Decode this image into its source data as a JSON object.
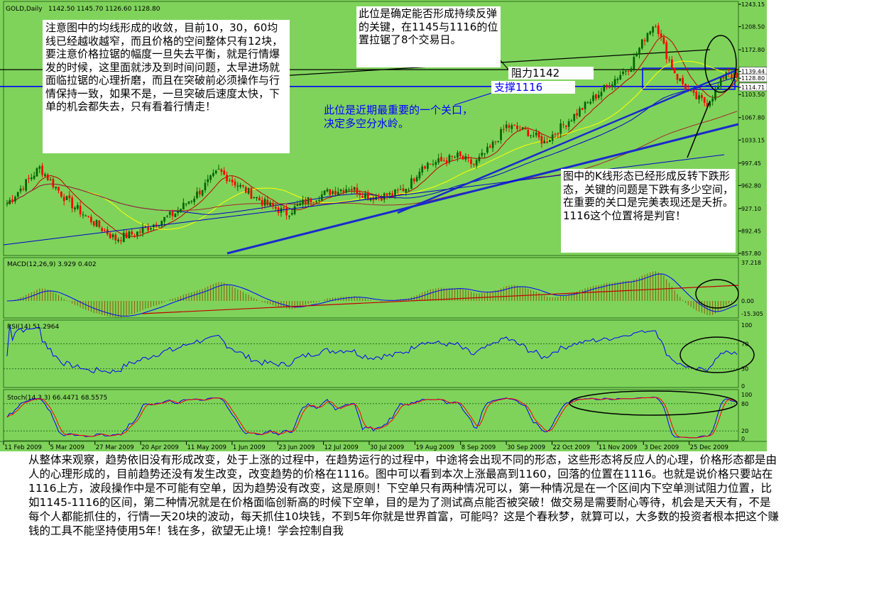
{
  "header": {
    "symbol": "GOLD,Daily",
    "ohlc": "1142.50 1145.70 1126.60 1128.80"
  },
  "price_axis": [
    "1243.15",
    "1208.50",
    "1172.80",
    "1139.44",
    "1128.80",
    "1114.71",
    "1103.50",
    "1067.80",
    "1033.15",
    "997.45",
    "962.80",
    "927.10",
    "892.45",
    "857.80"
  ],
  "date_axis": [
    "11 Feb 2009",
    "5 Mar 2009",
    "27 Mar 2009",
    "20 Apr 2009",
    "11 May 2009",
    "1 Jun 2009",
    "23 Jun 2009",
    "12 Jul 2009",
    "30 Jul 2009",
    "19 Aug 2009",
    "8 Sep 2009",
    "30 Sep 2009",
    "22 Oct 2009",
    "11 Nov 2009",
    "3 Dec 2009",
    "25 Dec 2009"
  ],
  "macd": {
    "label": "MACD(12,26,9) 3.929 0.402",
    "axis": [
      "37.218",
      "0.00",
      "-15.305"
    ]
  },
  "rsi": {
    "label": "RSI(14) 51.2964",
    "axis": [
      "100",
      "70",
      "30",
      "0"
    ]
  },
  "stoch": {
    "label": "Stoch(14,3,3) 66.4471 68.5575",
    "axis": [
      "100",
      "80",
      "20",
      "0"
    ]
  },
  "annotations": {
    "left_note": "注意图中的均线形成的收敛，目前10，30，60均线已经越收越窄，而且价格的空间整体只有12块，要注意价格拉锯的幅度一旦失去平衡，就是行情爆发的时候，这里面就涉及到时间问题，太早进场就面临拉锯的心理折磨，而且在突破前必须操作与行情保持一致，如果不是，一旦突破后速度太快，下单的机会都失去，只有看着行情走！",
    "top_note": "此位是确定能否形成持续反弹的关键，在1145与1116的位置拉锯了8个交易日。",
    "blue_note": "此位是近期最重要的一个关口，决定多空分水岭。",
    "right_note": "图中的K线形态已经形成反转下跌形态，关键的问题是下跌有多少空间，在重要的关口是完美表现还是夭折。1116这个位置将是判官！",
    "resistance": "阻力1142",
    "support": "支撑1116"
  },
  "bottom_text": "从整体来观察，趋势依旧没有形成改变，处于上涨的过程中，在趋势运行的过程中，中途将会出现不同的形态，这些形态将反应人的心理，价格形态都是由人的心理形成的，目前趋势还没有发生改变，改变趋势的价格在1116。图中可以看到本次上涨最高到1160，回落的位置在1116。也就是说价格只要站在1116上方，波段操作中是不可能有空单，因为趋势没有改变，这是原则！下空单只有两种情况可以，第一种情况是在一个区间内下空单测试阻力位置，比如1145-1116的区间，第二种情况就是在价格面临创新高的时候下空单，目的是为了测试高点能否被突破！做交易是需要耐心等待，机会是天天有，不是每个人都能抓住的，行情一天20块的波动，每天抓住10块钱，不到5年你就是世界首富，可能吗？这是个春秋梦，就算可以，大多数的投资者根本把这个赚钱的工具不能坚持使用5年！钱在多，欲望无止境！学会控制自我",
  "colors": {
    "background": "#7fd35b",
    "bull": "#006400",
    "bear": "#ff0000",
    "ma_fast": "#c00000",
    "ma_mid": "#ffff00",
    "ma_slow": "#0000cc",
    "trend": "#1a2acd",
    "macd_hist": "#8b5a00",
    "macd_signal": "#0000ff",
    "stoch_k": "#0000ff",
    "stoch_d": "#ff0000"
  },
  "chart_data": {
    "type": "candlestick",
    "symbol": "GOLD,Daily",
    "ylim": [
      857.8,
      1243.15
    ],
    "levels": {
      "resistance": 1142,
      "support": 1116
    },
    "anchors": [
      {
        "d": 0,
        "p": 935
      },
      {
        "d": 12,
        "p": 990
      },
      {
        "d": 22,
        "p": 940
      },
      {
        "d": 30,
        "p": 912
      },
      {
        "d": 40,
        "p": 880
      },
      {
        "d": 48,
        "p": 890
      },
      {
        "d": 55,
        "p": 905
      },
      {
        "d": 62,
        "p": 920
      },
      {
        "d": 70,
        "p": 950
      },
      {
        "d": 78,
        "p": 985
      },
      {
        "d": 88,
        "p": 955
      },
      {
        "d": 95,
        "p": 935
      },
      {
        "d": 103,
        "p": 920
      },
      {
        "d": 110,
        "p": 938
      },
      {
        "d": 118,
        "p": 952
      },
      {
        "d": 126,
        "p": 960
      },
      {
        "d": 134,
        "p": 945
      },
      {
        "d": 142,
        "p": 948
      },
      {
        "d": 148,
        "p": 962
      },
      {
        "d": 153,
        "p": 995
      },
      {
        "d": 160,
        "p": 1000
      },
      {
        "d": 166,
        "p": 1008
      },
      {
        "d": 172,
        "p": 995
      },
      {
        "d": 178,
        "p": 1020
      },
      {
        "d": 184,
        "p": 1055
      },
      {
        "d": 192,
        "p": 1045
      },
      {
        "d": 198,
        "p": 1030
      },
      {
        "d": 206,
        "p": 1060
      },
      {
        "d": 214,
        "p": 1090
      },
      {
        "d": 222,
        "p": 1120
      },
      {
        "d": 230,
        "p": 1150
      },
      {
        "d": 236,
        "p": 1200
      },
      {
        "d": 239,
        "p": 1215
      },
      {
        "d": 243,
        "p": 1165
      },
      {
        "d": 247,
        "p": 1130
      },
      {
        "d": 253,
        "p": 1100
      },
      {
        "d": 258,
        "p": 1090
      },
      {
        "d": 262,
        "p": 1115
      },
      {
        "d": 265,
        "p": 1140
      },
      {
        "d": 269,
        "p": 1128
      }
    ]
  }
}
